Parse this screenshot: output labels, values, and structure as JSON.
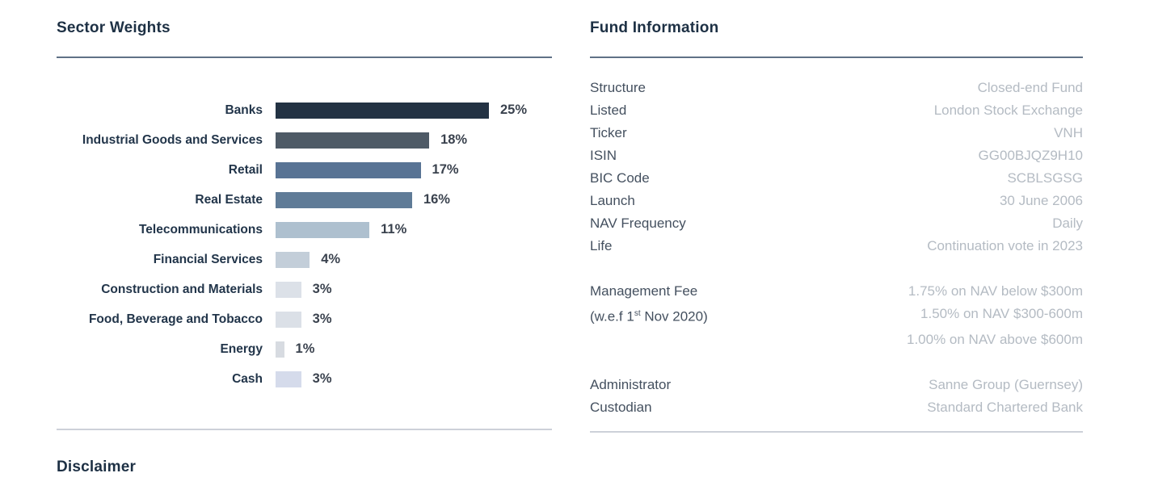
{
  "sector_weights": {
    "title": "Sector Weights"
  },
  "chart_data": {
    "type": "bar",
    "orientation": "horizontal",
    "title": "Sector Weights",
    "unit": "%",
    "xlim": [
      0,
      25
    ],
    "grid": false,
    "legend": false,
    "categories": [
      "Banks",
      "Industrial Goods and Services",
      "Retail",
      "Real Estate",
      "Telecommunications",
      "Financial Services",
      "Construction and Materials",
      "Food, Beverage and Tobacco",
      "Energy",
      "Cash"
    ],
    "values": [
      25,
      18,
      17,
      16,
      11,
      4,
      3,
      3,
      1,
      3
    ],
    "value_labels": [
      "25%",
      "18%",
      "17%",
      "16%",
      "11%",
      "4%",
      "3%",
      "3%",
      "1%",
      "3%"
    ],
    "bar_colors": [
      "#233243",
      "#4e5a66",
      "#587394",
      "#5f7b97",
      "#aec0cf",
      "#c3ced9",
      "#dce1e8",
      "#dbe0e7",
      "#d7dbe1",
      "#d5dbeb"
    ]
  },
  "fund_information": {
    "title": "Fund Information",
    "groups": [
      [
        {
          "key": "Structure",
          "value": "Closed-end Fund"
        },
        {
          "key": "Listed",
          "value": "London Stock Exchange"
        },
        {
          "key": "Ticker",
          "value": "VNH"
        },
        {
          "key": "ISIN",
          "value": "GG00BJQZ9H10"
        },
        {
          "key": "BIC Code",
          "value": "SCBLSGSG"
        },
        {
          "key": "Launch",
          "value": "30 June 2006"
        },
        {
          "key": "NAV Frequency",
          "value": "Daily"
        },
        {
          "key": "Life",
          "value": "Continuation vote in 2023"
        }
      ],
      [
        {
          "key": "Management Fee",
          "value": "1.75% on NAV below $300m"
        },
        {
          "key": "(w.e.f 1st Nov 2020)",
          "value": "1.50% on NAV $300-600m"
        },
        {
          "key": "",
          "value": "1.00% on NAV above $600m"
        }
      ],
      [
        {
          "key": "Administrator",
          "value": "Sanne Group (Guernsey)"
        },
        {
          "key": "Custodian",
          "value": "Standard Chartered Bank"
        }
      ]
    ]
  },
  "disclaimer": {
    "title": "Disclaimer"
  },
  "colors": {
    "heading": "#1d3044",
    "top_rule": "#5f7186",
    "bottom_rule": "#cdd1d9",
    "chart_label": "#22354a",
    "chart_value": "#3a424e",
    "fund_key": "#44505f",
    "fund_value": "#b4bbc3",
    "background": "#ffffff"
  }
}
